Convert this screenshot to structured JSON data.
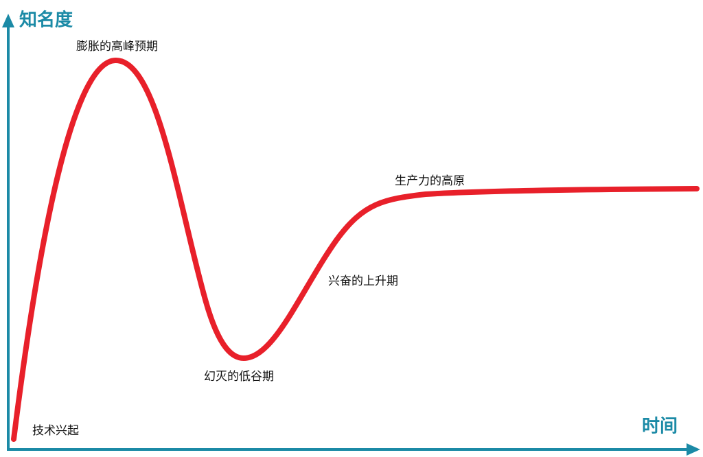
{
  "axes": {
    "y": "知名度",
    "x": "时间"
  },
  "phases": [
    {
      "label": "技术兴起"
    },
    {
      "label": "膨胀的高峰预期"
    },
    {
      "label": "幻灭的低谷期"
    },
    {
      "label": "兴奋的上升期"
    },
    {
      "label": "生产力的高原"
    }
  ]
}
